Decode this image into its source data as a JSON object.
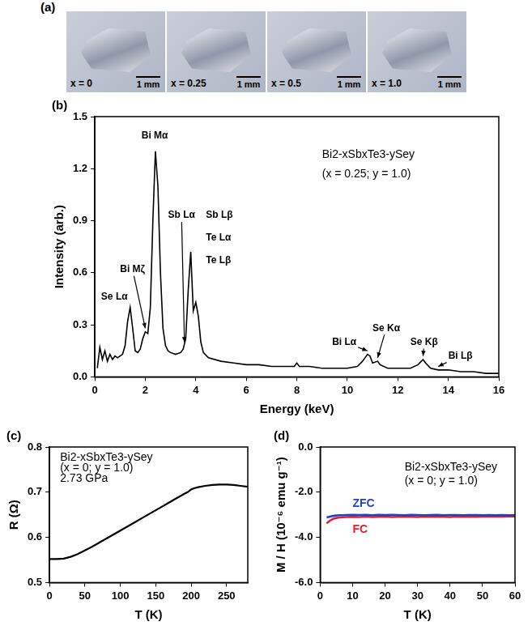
{
  "photos": {
    "panel_label": "(a)",
    "items": [
      {
        "label": "x = 0",
        "scale_bar": "1 mm"
      },
      {
        "label": "x = 0.25",
        "scale_bar": "1 mm"
      },
      {
        "label": "x = 0.5",
        "scale_bar": "1 mm"
      },
      {
        "label": "x = 1.0",
        "scale_bar": "1 mm"
      }
    ]
  },
  "chart_data": [
    {
      "panel_label": "(b)",
      "type": "line",
      "x_label": "Energy (keV)",
      "y_label": "Intensity (arb.)",
      "x": [
        0.1,
        0.2,
        0.3,
        0.4,
        0.5,
        0.6,
        0.7,
        0.8,
        0.9,
        1.0,
        1.1,
        1.2,
        1.3,
        1.4,
        1.5,
        1.6,
        1.7,
        1.8,
        1.9,
        2.0,
        2.1,
        2.2,
        2.3,
        2.4,
        2.5,
        2.6,
        2.7,
        2.8,
        2.9,
        3.0,
        3.2,
        3.4,
        3.5,
        3.6,
        3.7,
        3.8,
        3.9,
        4.0,
        4.1,
        4.2,
        4.3,
        4.5,
        5.0,
        5.5,
        6.0,
        6.5,
        7.0,
        7.5,
        7.9,
        8.0,
        8.1,
        8.5,
        9.0,
        9.5,
        10.0,
        10.4,
        10.6,
        10.8,
        10.9,
        11.0,
        11.2,
        11.3,
        11.6,
        12.0,
        12.5,
        12.8,
        13.0,
        13.1,
        13.3,
        13.6,
        14.0,
        14.5,
        15.0,
        15.5,
        16.0
      ],
      "values": [
        0.05,
        0.17,
        0.1,
        0.15,
        0.09,
        0.13,
        0.1,
        0.12,
        0.11,
        0.12,
        0.13,
        0.18,
        0.32,
        0.4,
        0.28,
        0.15,
        0.14,
        0.16,
        0.22,
        0.26,
        0.25,
        0.4,
        0.9,
        1.3,
        1.1,
        0.6,
        0.28,
        0.18,
        0.15,
        0.14,
        0.13,
        0.14,
        0.16,
        0.22,
        0.5,
        0.72,
        0.38,
        0.43,
        0.35,
        0.2,
        0.14,
        0.11,
        0.09,
        0.08,
        0.07,
        0.07,
        0.06,
        0.06,
        0.06,
        0.08,
        0.06,
        0.06,
        0.05,
        0.05,
        0.05,
        0.06,
        0.09,
        0.13,
        0.12,
        0.08,
        0.09,
        0.07,
        0.05,
        0.05,
        0.05,
        0.07,
        0.1,
        0.08,
        0.05,
        0.04,
        0.04,
        0.03,
        0.03,
        0.02,
        0.02
      ],
      "color": "#000000",
      "xlim": [
        0,
        16
      ],
      "xticks": [
        0,
        2,
        4,
        6,
        8,
        10,
        12,
        14,
        16
      ],
      "ylim": [
        0,
        1.5
      ],
      "yticks": [
        {
          "value": 0,
          "label": "0.0"
        },
        0.3,
        0.6,
        0.9,
        1.2,
        1.5
      ],
      "grid": false,
      "annotations": [
        {
          "text": "Bi Mα",
          "x": 1.85,
          "y": 1.39
        },
        {
          "text": "Se Lα",
          "x": 0.25,
          "y": 0.46
        },
        {
          "text": "Bi Mζ",
          "x": 1.0,
          "y": 0.62,
          "arrow_to": [
            2.0,
            0.28
          ]
        },
        {
          "text": "Sb Lα",
          "x": 2.9,
          "y": 0.93,
          "arrow_to": [
            3.55,
            0.2
          ]
        },
        {
          "text": "Sb Lβ",
          "x": 4.4,
          "y": 0.93
        },
        {
          "text": "Te Lα",
          "x": 4.4,
          "y": 0.8
        },
        {
          "text": "Te Lβ",
          "x": 4.4,
          "y": 0.67
        },
        {
          "text": "Bi Lα",
          "x": 9.4,
          "y": 0.2,
          "arrow_to": [
            10.8,
            0.15
          ]
        },
        {
          "text": "Se Kα",
          "x": 11.0,
          "y": 0.28,
          "arrow_to": [
            11.2,
            0.11
          ]
        },
        {
          "text": "Se Kβ",
          "x": 12.5,
          "y": 0.2,
          "arrow_to": [
            13.0,
            0.12
          ]
        },
        {
          "text": "Bi Lβ",
          "x": 14.0,
          "y": 0.12,
          "arrow_to": [
            13.6,
            0.06
          ]
        }
      ],
      "inset_text": [
        {
          "text": "Bi2-xSbxTe3-ySey",
          "x": 9.0,
          "y": 1.28
        },
        {
          "text": "(x = 0.25; y = 1.0)",
          "x": 9.0,
          "y": 1.17
        }
      ]
    },
    {
      "panel_label": "(c)",
      "type": "line",
      "x_label": "T (K)",
      "y_label": "R (Ω)",
      "x": [
        0,
        10,
        20,
        30,
        40,
        50,
        60,
        70,
        80,
        90,
        100,
        110,
        120,
        130,
        140,
        150,
        160,
        170,
        180,
        190,
        195,
        200,
        205,
        210,
        220,
        230,
        240,
        250,
        260,
        270,
        280
      ],
      "values": [
        0.552,
        0.552,
        0.553,
        0.557,
        0.563,
        0.571,
        0.579,
        0.588,
        0.597,
        0.606,
        0.615,
        0.624,
        0.633,
        0.642,
        0.651,
        0.66,
        0.669,
        0.678,
        0.687,
        0.696,
        0.7,
        0.706,
        0.709,
        0.711,
        0.714,
        0.716,
        0.717,
        0.717,
        0.716,
        0.714,
        0.712
      ],
      "color": "#000000",
      "xlim": [
        0,
        280
      ],
      "xticks": [
        0,
        50,
        100,
        150,
        200,
        250
      ],
      "ylim": [
        0.5,
        0.8
      ],
      "yticks": [
        0.5,
        0.6,
        0.7,
        0.8
      ],
      "grid": false,
      "inset_text": [
        {
          "text": "Bi2-xSbxTe3-ySey",
          "x": 15,
          "y": 0.776
        },
        {
          "text": "(x = 0; y = 1.0)",
          "x": 15,
          "y": 0.753
        },
        {
          "text": "2.73 GPa",
          "x": 15,
          "y": 0.73
        }
      ]
    },
    {
      "panel_label": "(d)",
      "type": "line",
      "x_label": "T (K)",
      "y_label": "M / H (10⁻⁶ emu g⁻¹)",
      "x": [
        2,
        3,
        4,
        5,
        6,
        7,
        8,
        10,
        12,
        14,
        16,
        18,
        20,
        22,
        24,
        26,
        28,
        30,
        32,
        34,
        36,
        38,
        40,
        42,
        44,
        46,
        48,
        50,
        52,
        54,
        56,
        58,
        60
      ],
      "series": [
        {
          "name": "ZFC",
          "color": "#1f3fd0",
          "values": [
            -3.12,
            -3.08,
            -3.05,
            -3.03,
            -3.02,
            -3.02,
            -3.01,
            -3.0,
            -3.01,
            -3.0,
            -3.02,
            -3.0,
            -3.01,
            -3.0,
            -3.01,
            -3.02,
            -3.0,
            -3.01,
            -3.02,
            -3.01,
            -3.0,
            -3.02,
            -3.01,
            -3.01,
            -3.02,
            -3.01,
            -3.01,
            -3.02,
            -3.01,
            -3.02,
            -3.01,
            -3.02,
            -3.02
          ]
        },
        {
          "name": "FC",
          "color": "#e0202a",
          "values": [
            -3.38,
            -3.26,
            -3.18,
            -3.14,
            -3.12,
            -3.11,
            -3.1,
            -3.09,
            -3.1,
            -3.08,
            -3.1,
            -3.09,
            -3.08,
            -3.1,
            -3.09,
            -3.08,
            -3.09,
            -3.1,
            -3.08,
            -3.09,
            -3.08,
            -3.09,
            -3.1,
            -3.08,
            -3.09,
            -3.08,
            -3.09,
            -3.08,
            -3.08,
            -3.07,
            -3.08,
            -3.07,
            -3.07
          ]
        }
      ],
      "xlim": [
        0,
        60
      ],
      "xticks": [
        0,
        10,
        20,
        30,
        40,
        50,
        60
      ],
      "ylim": [
        -6,
        0
      ],
      "yticks": [
        {
          "value": -6,
          "label": "-6.0"
        },
        {
          "value": -4,
          "label": "-4.0"
        },
        {
          "value": -2,
          "label": "-2.0"
        },
        {
          "value": 0,
          "label": "0.0"
        }
      ],
      "grid": false,
      "annotations": [
        {
          "text": "ZFC",
          "x": 10,
          "y": -2.5
        },
        {
          "text": "FC",
          "x": 10,
          "y": -3.65
        }
      ],
      "inset_text": [
        {
          "text": "Bi2-xSbxTe3-ySey",
          "x": 26,
          "y": -0.9
        },
        {
          "text": "(x = 0; y = 1.0)",
          "x": 26,
          "y": -1.5
        }
      ]
    }
  ]
}
